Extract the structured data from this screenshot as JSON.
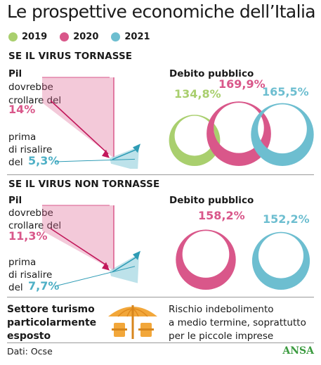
{
  "title": "Le prospettive economiche dell’Italia",
  "legend": [
    {
      "label": "2019",
      "color": "#a9cf6e"
    },
    {
      "label": "2020",
      "color": "#d9578a"
    },
    {
      "label": "2021",
      "color": "#6dbed0"
    }
  ],
  "scenario1": {
    "heading": "SE IL VIRUS TORNASSE",
    "pil_label": "Pil",
    "fall_text": [
      "dovrebbe",
      "crollare del"
    ],
    "fall_value": "14%",
    "rise_text": [
      "prima",
      "di risalire",
      "del"
    ],
    "rise_value": "5,3%",
    "debt_label": "Debito pubblico",
    "debt_values": [
      "134,8%",
      "169,9%",
      "165,5%"
    ]
  },
  "scenario2": {
    "heading": "SE IL VIRUS NON TORNASSE",
    "pil_label": "Pil",
    "fall_text": [
      "dovrebbe",
      "crollare del"
    ],
    "fall_value": "11,3%",
    "rise_text": [
      "prima",
      "di risalire",
      "del"
    ],
    "rise_value": "7,7%",
    "debt_label": "Debito pubblico",
    "debt_values": [
      "158,2%",
      "152,2%"
    ]
  },
  "tourism": [
    "Settore turismo",
    "particolarmente",
    "esposto"
  ],
  "risk": [
    "Rischio indebolimento",
    "a medio termine, soprattutto",
    "per le piccole imprese"
  ],
  "source": "Dati: Ocse",
  "brand": "ANSA",
  "chart_data": [
    {
      "type": "bar",
      "series": [
        {
          "name": "2020",
          "values": [
            -14
          ]
        },
        {
          "name": "2021",
          "values": [
            5.3
          ]
        }
      ],
      "colors": {
        "2020": "#d9578a",
        "2021": "#6dbed0"
      }
    },
    {
      "type": "bar",
      "categories": [
        "2019",
        "2020",
        "2021"
      ],
      "values": [
        134.8,
        169.9,
        165.5
      ]
    },
    {
      "type": "bar",
      "series": [
        {
          "name": "2020",
          "values": [
            -11.3
          ]
        },
        {
          "name": "2021",
          "values": [
            7.7
          ]
        }
      ],
      "colors": {
        "2020": "#d9578a",
        "2021": "#6dbed0"
      }
    },
    {
      "type": "bar",
      "categories": [
        "2020",
        "2021"
      ],
      "values": [
        158.2,
        152.2
      ]
    }
  ]
}
